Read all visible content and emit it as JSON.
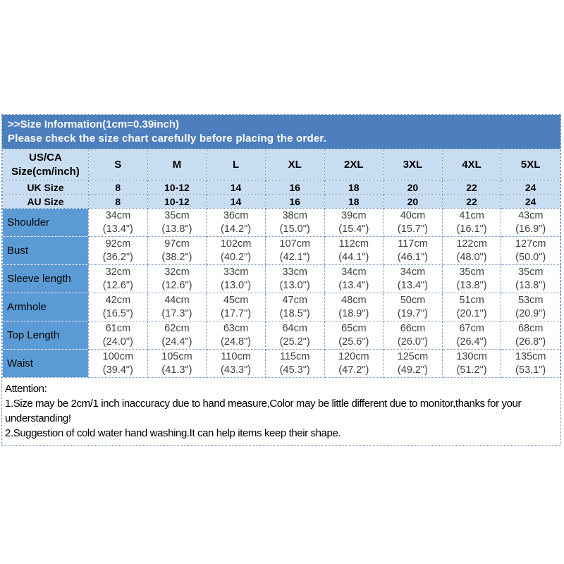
{
  "header": {
    "title": ">>Size Information(1cm=0.39inch)",
    "subtitle": "Please check the size chart carefully before placing the order."
  },
  "table": {
    "corner_label": "US/CA\nSize(cm/inch)",
    "size_columns": [
      "S",
      "M",
      "L",
      "XL",
      "2XL",
      "3XL",
      "4XL",
      "5XL"
    ],
    "size_rows": [
      {
        "label": "UK Size",
        "values": [
          "8",
          "10-12",
          "14",
          "16",
          "18",
          "20",
          "22",
          "24"
        ]
      },
      {
        "label": "AU Size",
        "values": [
          "8",
          "10-12",
          "14",
          "16",
          "18",
          "20",
          "22",
          "24"
        ]
      }
    ],
    "measurements": [
      {
        "label": "Shoulder",
        "cm": [
          "34cm",
          "35cm",
          "36cm",
          "38cm",
          "39cm",
          "40cm",
          "41cm",
          "43cm"
        ],
        "inch": [
          "(13.4\")",
          "(13.8\")",
          "(14.2\")",
          "(15.0\")",
          "(15.4\")",
          "(15.7\")",
          "(16.1\")",
          "(16.9\")"
        ]
      },
      {
        "label": "Bust",
        "cm": [
          "92cm",
          "97cm",
          "102cm",
          "107cm",
          "112cm",
          "117cm",
          "122cm",
          "127cm"
        ],
        "inch": [
          "(36.2\")",
          "(38.2\")",
          "(40.2\")",
          "(42.1\")",
          "(44.1\")",
          "(46.1\")",
          "(48.0\")",
          "(50.0\")"
        ]
      },
      {
        "label": "Sleeve length",
        "cm": [
          "32cm",
          "32cm",
          "33cm",
          "33cm",
          "34cm",
          "34cm",
          "35cm",
          "35cm"
        ],
        "inch": [
          "(12.6\")",
          "(12.6\")",
          "(13.0\")",
          "(13.0\")",
          "(13.4\")",
          "(13.4\")",
          "(13.8\")",
          "(13.8\")"
        ]
      },
      {
        "label": "Armhole",
        "cm": [
          "42cm",
          "44cm",
          "45cm",
          "47cm",
          "48cm",
          "50cm",
          "51cm",
          "53cm"
        ],
        "inch": [
          "(16.5\")",
          "(17.3\")",
          "(17.7\")",
          "(18.5\")",
          "(18.9\")",
          "(19.7\")",
          "(20.1\")",
          "(20.9\")"
        ]
      },
      {
        "label": "Top Length",
        "cm": [
          "61cm",
          "62cm",
          "63cm",
          "64cm",
          "65cm",
          "66cm",
          "67cm",
          "68cm"
        ],
        "inch": [
          "(24.0\")",
          "(24.4\")",
          "(24.8\")",
          "(25.2\")",
          "(25.6\")",
          "(26.0\")",
          "(26.4\")",
          "(26.8\")"
        ]
      },
      {
        "label": "Waist",
        "cm": [
          "100cm",
          "105cm",
          "110cm",
          "115cm",
          "120cm",
          "125cm",
          "130cm",
          "135cm"
        ],
        "inch": [
          "(39.4\")",
          "(41.3\")",
          "(43.3\")",
          "(45.3\")",
          "(47.2\")",
          "(49.2\")",
          "(51.2\")",
          "(53.1\")"
        ]
      }
    ]
  },
  "attention": {
    "title": "Attention:",
    "lines": [
      "1.Size may be 2cm/1 inch inaccuracy due to hand measure,Color may be little different due to monitor,thanks for your understanding!",
      "2.Suggestion of cold water hand washing.It can help items keep their shape."
    ]
  },
  "colors": {
    "title_bar_bg": "#4d7ebd",
    "header_cell_bg": "#c9ddf2",
    "label_cell_bg": "#5b9bd5",
    "data_text": "#3f3f3f",
    "border": "#6f94c5"
  }
}
